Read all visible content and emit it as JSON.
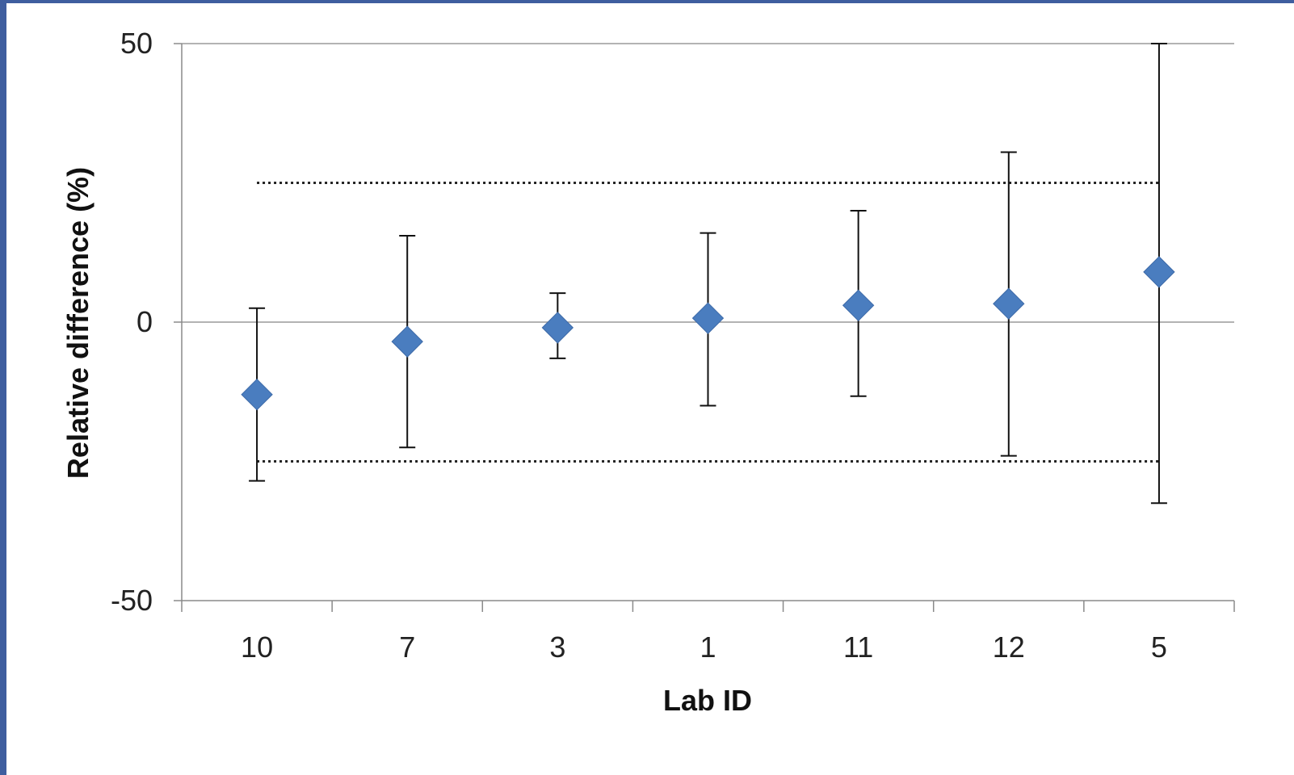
{
  "chart_data": {
    "type": "scatter",
    "xlabel": "Lab ID",
    "ylabel": "Relative difference (%)",
    "ylim": [
      -50,
      50
    ],
    "yticks": [
      "50",
      "0",
      "-50"
    ],
    "categories": [
      "10",
      "7",
      "3",
      "1",
      "11",
      "12",
      "5"
    ],
    "series": [
      {
        "values": [
          -13,
          -3.5,
          -1,
          0.7,
          3,
          3.3,
          9
        ],
        "error_low": [
          -28.5,
          -22.5,
          -6.5,
          -15,
          -13.3,
          -24,
          -32.5
        ],
        "error_high": [
          2.5,
          15.5,
          5.2,
          16,
          20,
          30.5,
          50
        ],
        "color": "#4a7dbf"
      }
    ],
    "reference_lines": [
      25,
      -25
    ],
    "grid": false,
    "legend": "none"
  }
}
